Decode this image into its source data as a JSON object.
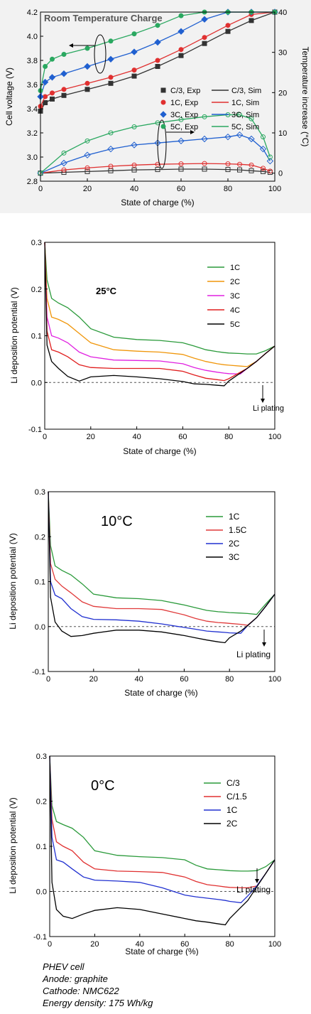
{
  "chart_data": [
    {
      "type": "scatter",
      "title": "Room Temperature Charge",
      "xlabel": "State of charge (%)",
      "ylabel": "Cell voltage (V)",
      "y2label": "Temperature increase (°C)",
      "xlim": [
        0,
        100
      ],
      "ylim": [
        2.8,
        4.2
      ],
      "y2lim": [
        -2,
        40
      ],
      "xticks": [
        "0",
        "20",
        "40",
        "60",
        "80",
        "100"
      ],
      "yticks": [
        "2.8",
        "3.0",
        "3.2",
        "3.4",
        "3.6",
        "3.8",
        "4.0",
        "4.2"
      ],
      "y2ticks": [
        "0",
        "10",
        "20",
        "30",
        "40"
      ],
      "legend_position": "right-center",
      "voltage_x": [
        0,
        2,
        5,
        10,
        20,
        30,
        40,
        50,
        60,
        70,
        80,
        90,
        100
      ],
      "temperature_x": [
        0,
        10,
        20,
        30,
        40,
        50,
        60,
        70,
        80,
        85,
        90,
        95,
        98
      ],
      "series": [
        {
          "name_exp": "C/3, Exp",
          "name_sim": "C/3, Sim",
          "color": "#333333",
          "marker": "square",
          "voltage": [
            3.38,
            3.45,
            3.48,
            3.51,
            3.56,
            3.61,
            3.67,
            3.75,
            3.84,
            3.94,
            4.04,
            4.13,
            4.2
          ],
          "temperature": [
            0,
            0.2,
            0.4,
            0.6,
            0.8,
            0.9,
            1.0,
            1.0,
            0.9,
            0.8,
            0.6,
            0.4,
            0.2
          ]
        },
        {
          "name_exp": "1C, Exp",
          "name_sim": "1C, Sim",
          "color": "#e03030",
          "marker": "circle",
          "voltage": [
            3.42,
            3.5,
            3.53,
            3.56,
            3.61,
            3.66,
            3.72,
            3.8,
            3.89,
            3.99,
            4.09,
            4.18,
            4.2
          ],
          "temperature": [
            0,
            0.8,
            1.3,
            1.7,
            2.0,
            2.2,
            2.3,
            2.4,
            2.3,
            2.2,
            2.0,
            1.2,
            0.5
          ]
        },
        {
          "name_exp": "3C, Exp",
          "name_sim": "3C, Sim",
          "color": "#2060d0",
          "marker": "diamond",
          "voltage": [
            3.5,
            3.62,
            3.66,
            3.69,
            3.75,
            3.81,
            3.87,
            3.95,
            4.04,
            4.14,
            4.2,
            4.2,
            4.2
          ],
          "temperature": [
            0,
            2.5,
            4.5,
            6,
            7,
            7.5,
            8,
            8.5,
            9,
            9.5,
            8.5,
            6,
            3
          ]
        },
        {
          "name_exp": "5C, Exp",
          "name_sim": "5C, Sim",
          "color": "#2aa860",
          "marker": "circle",
          "voltage": [
            3.55,
            3.75,
            3.81,
            3.85,
            3.9,
            3.96,
            4.02,
            4.09,
            4.17,
            4.2,
            4.2,
            4.2,
            4.2
          ],
          "temperature": [
            0,
            5,
            8,
            10,
            11.5,
            12.5,
            13.3,
            14,
            14.5,
            14.5,
            13.5,
            9,
            4
          ]
        }
      ]
    },
    {
      "type": "line",
      "annotation": "25°C",
      "xlabel": "State of charge (%)",
      "ylabel": "Li deposition potential (V)",
      "xlim": [
        0,
        100
      ],
      "ylim": [
        -0.1,
        0.3
      ],
      "xticks": [
        "0",
        "20",
        "40",
        "60",
        "80",
        "100"
      ],
      "yticks": [
        "-0.1",
        "0.0",
        "0.1",
        "0.2",
        "0.3"
      ],
      "plating_label": "Li plating",
      "legend_position": "top-right",
      "x": [
        0,
        1,
        3,
        6,
        10,
        15,
        20,
        30,
        40,
        50,
        60,
        65,
        70,
        75,
        78,
        80,
        85,
        88,
        92,
        96,
        100
      ],
      "series": [
        {
          "name": "1C",
          "color": "#2a9a3a",
          "values": [
            0.3,
            0.22,
            0.18,
            0.17,
            0.16,
            0.14,
            0.115,
            0.097,
            0.092,
            0.09,
            0.085,
            0.078,
            0.07,
            0.066,
            0.064,
            0.063,
            0.062,
            0.061,
            0.061,
            0.068,
            0.078
          ]
        },
        {
          "name": "2C",
          "color": "#f0960a",
          "values": [
            0.3,
            0.18,
            0.14,
            0.135,
            0.125,
            0.105,
            0.085,
            0.07,
            0.067,
            0.065,
            0.06,
            0.052,
            0.045,
            0.04,
            0.038,
            0.037,
            0.035,
            0.034,
            0.045,
            0.062,
            0.078
          ]
        },
        {
          "name": "3C",
          "color": "#e020e0",
          "values": [
            0.3,
            0.14,
            0.1,
            0.095,
            0.085,
            0.065,
            0.055,
            0.048,
            0.047,
            0.046,
            0.04,
            0.032,
            0.026,
            0.022,
            0.02,
            0.019,
            0.018,
            0.03,
            0.045,
            0.062,
            0.078
          ]
        },
        {
          "name": "4C",
          "color": "#e01e1e",
          "values": [
            0.3,
            0.11,
            0.07,
            0.065,
            0.055,
            0.038,
            0.032,
            0.03,
            0.03,
            0.03,
            0.024,
            0.016,
            0.009,
            0.006,
            0.004,
            0.008,
            0.022,
            0.03,
            0.045,
            0.062,
            0.078
          ]
        },
        {
          "name": "5C",
          "color": "#000000",
          "values": [
            0.3,
            0.08,
            0.045,
            0.03,
            0.013,
            0.003,
            0.012,
            0.015,
            0.012,
            0.008,
            0.002,
            -0.003,
            -0.004,
            -0.006,
            -0.007,
            0.003,
            0.02,
            0.03,
            0.045,
            0.062,
            0.078
          ]
        }
      ]
    },
    {
      "type": "line",
      "annotation": "10°C",
      "xlabel": "State of charge (%)",
      "ylabel": "Li deposition potential (V)",
      "xlim": [
        0,
        100
      ],
      "ylim": [
        -0.1,
        0.3
      ],
      "xticks": [
        "0",
        "20",
        "40",
        "60",
        "80",
        "100"
      ],
      "yticks": [
        "-0.1",
        "0.0",
        "0.1",
        "0.2",
        "0.3"
      ],
      "plating_label": "Li plating",
      "legend_position": "top-right",
      "x": [
        0,
        1,
        3,
        6,
        10,
        15,
        20,
        30,
        40,
        50,
        60,
        65,
        70,
        75,
        78,
        80,
        85,
        88,
        92,
        96,
        100
      ],
      "series": [
        {
          "name": "1C",
          "color": "#2a9a3a",
          "values": [
            0.3,
            0.18,
            0.135,
            0.125,
            0.115,
            0.095,
            0.072,
            0.064,
            0.062,
            0.058,
            0.048,
            0.042,
            0.036,
            0.033,
            0.032,
            0.031,
            0.03,
            0.029,
            0.027,
            0.05,
            0.072
          ]
        },
        {
          "name": "1.5C",
          "color": "#e03a3a",
          "values": [
            0.3,
            0.14,
            0.105,
            0.09,
            0.075,
            0.055,
            0.045,
            0.04,
            0.04,
            0.038,
            0.026,
            0.018,
            0.012,
            0.009,
            0.008,
            0.007,
            0.005,
            0.003,
            0.02,
            0.045,
            0.072
          ]
        },
        {
          "name": "2C",
          "color": "#2030d0",
          "values": [
            0.3,
            0.1,
            0.07,
            0.062,
            0.04,
            0.022,
            0.016,
            0.015,
            0.012,
            0.006,
            -0.002,
            -0.006,
            -0.01,
            -0.012,
            -0.013,
            -0.014,
            -0.015,
            0.002,
            0.02,
            0.045,
            0.072
          ]
        },
        {
          "name": "3C",
          "color": "#000000",
          "values": [
            0.3,
            0.065,
            0.01,
            -0.01,
            -0.022,
            -0.02,
            -0.015,
            -0.008,
            -0.008,
            -0.012,
            -0.02,
            -0.025,
            -0.03,
            -0.034,
            -0.036,
            -0.025,
            -0.01,
            0.002,
            0.02,
            0.045,
            0.072
          ]
        }
      ]
    },
    {
      "type": "line",
      "annotation": "0°C",
      "xlabel": "State of charge (%)",
      "ylabel": "Li deposition potential (V)",
      "xlim": [
        0,
        100
      ],
      "ylim": [
        -0.1,
        0.3
      ],
      "xticks": [
        "0",
        "20",
        "40",
        "60",
        "80",
        "100"
      ],
      "yticks": [
        "-0.1",
        "0.0",
        "0.1",
        "0.2",
        "0.3"
      ],
      "plating_label": "Li plating",
      "legend_position": "top-right",
      "x": [
        0,
        1,
        3,
        6,
        10,
        15,
        20,
        30,
        40,
        50,
        60,
        65,
        70,
        75,
        78,
        80,
        85,
        88,
        92,
        96,
        100
      ],
      "series": [
        {
          "name": "C/3",
          "color": "#2a9a3a",
          "values": [
            0.3,
            0.19,
            0.155,
            0.148,
            0.14,
            0.12,
            0.09,
            0.08,
            0.077,
            0.075,
            0.07,
            0.058,
            0.05,
            0.048,
            0.047,
            0.046,
            0.045,
            0.045,
            0.046,
            0.055,
            0.07
          ]
        },
        {
          "name": "C/1.5",
          "color": "#e03030",
          "values": [
            0.3,
            0.16,
            0.11,
            0.1,
            0.09,
            0.065,
            0.05,
            0.045,
            0.044,
            0.042,
            0.032,
            0.022,
            0.015,
            0.012,
            0.01,
            0.009,
            0.008,
            0.008,
            0.012,
            0.04,
            0.07
          ]
        },
        {
          "name": "1C",
          "color": "#2030d0",
          "values": [
            0.3,
            0.12,
            0.07,
            0.065,
            0.05,
            0.032,
            0.025,
            0.023,
            0.02,
            0.008,
            -0.008,
            -0.012,
            -0.015,
            -0.018,
            -0.02,
            -0.022,
            -0.025,
            -0.01,
            0.012,
            0.04,
            0.07
          ]
        },
        {
          "name": "2C",
          "color": "#000000",
          "values": [
            0.3,
            0.02,
            -0.04,
            -0.055,
            -0.06,
            -0.05,
            -0.042,
            -0.036,
            -0.04,
            -0.05,
            -0.06,
            -0.065,
            -0.068,
            -0.072,
            -0.074,
            -0.06,
            -0.035,
            -0.02,
            0.01,
            0.04,
            0.07
          ]
        }
      ]
    }
  ],
  "info": {
    "line1": "PHEV cell",
    "line2": "Anode: graphite",
    "line3": "Cathode: NMC622",
    "line4": "Energy density: 175 Wh/kg"
  }
}
